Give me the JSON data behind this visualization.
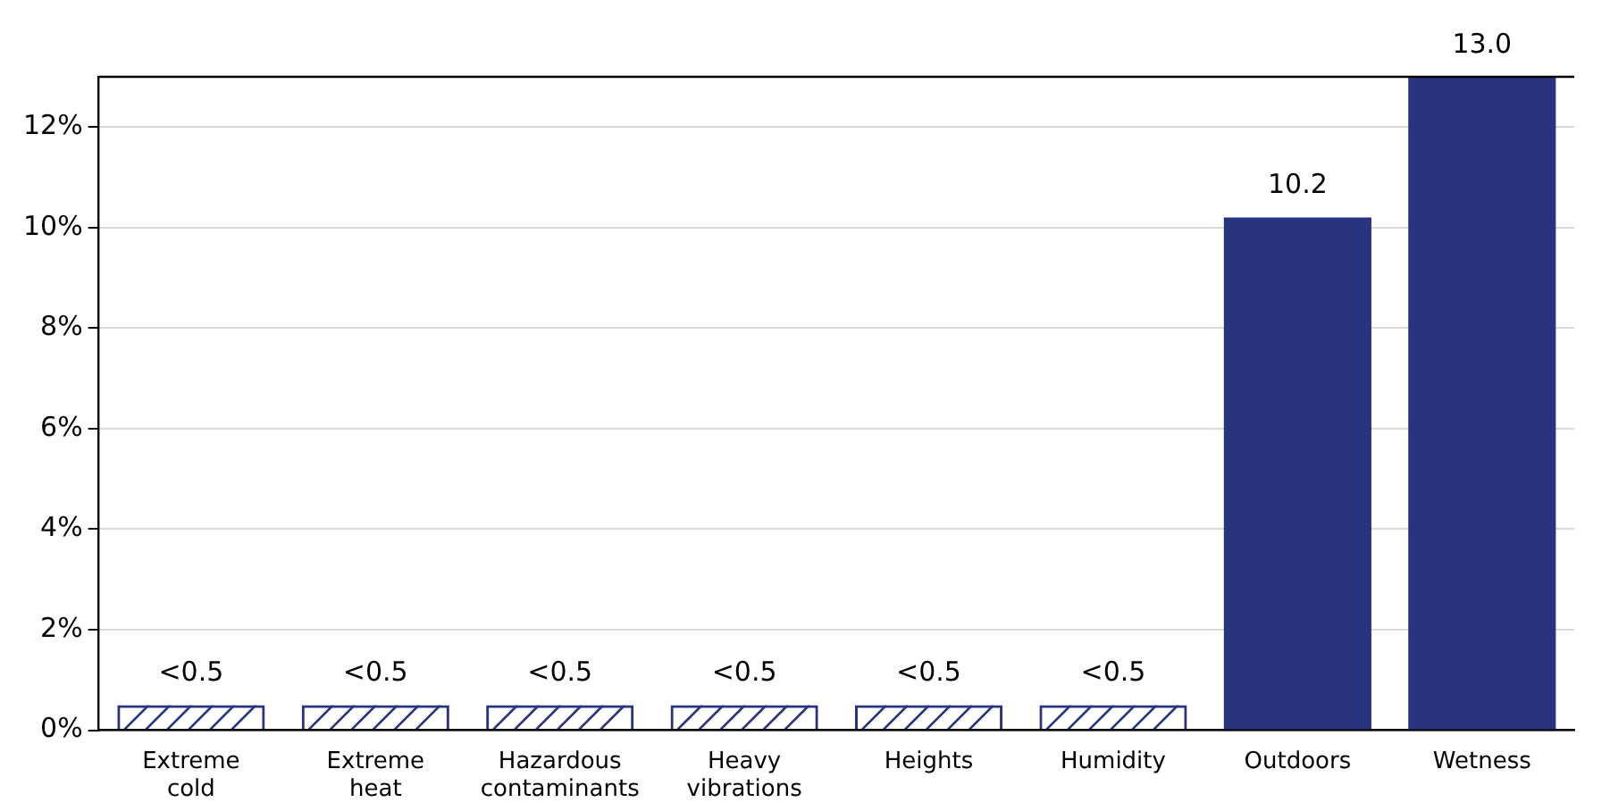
{
  "chart_data": {
    "type": "bar",
    "categories": [
      "Extreme cold",
      "Extreme heat",
      "Hazardous contaminants",
      "Heavy vibrations",
      "Heights",
      "Humidity",
      "Outdoors",
      "Wetness"
    ],
    "values": [
      0.5,
      0.5,
      0.5,
      0.5,
      0.5,
      0.5,
      10.2,
      13.0
    ],
    "value_labels": [
      "<0.5",
      "<0.5",
      "<0.5",
      "<0.5",
      "<0.5",
      "<0.5",
      "10.2",
      "13.0"
    ],
    "color": "#283480",
    "ylim": [
      0,
      13
    ],
    "yticks": [
      {
        "value": 0,
        "label": "0%"
      },
      {
        "value": 2,
        "label": "2%"
      },
      {
        "value": 4,
        "label": "4%"
      },
      {
        "value": 6,
        "label": "6%"
      },
      {
        "value": 8,
        "label": "8%"
      },
      {
        "value": 10,
        "label": "10%"
      },
      {
        "value": 12,
        "label": "12%"
      }
    ],
    "grid": "y",
    "legend": false
  }
}
